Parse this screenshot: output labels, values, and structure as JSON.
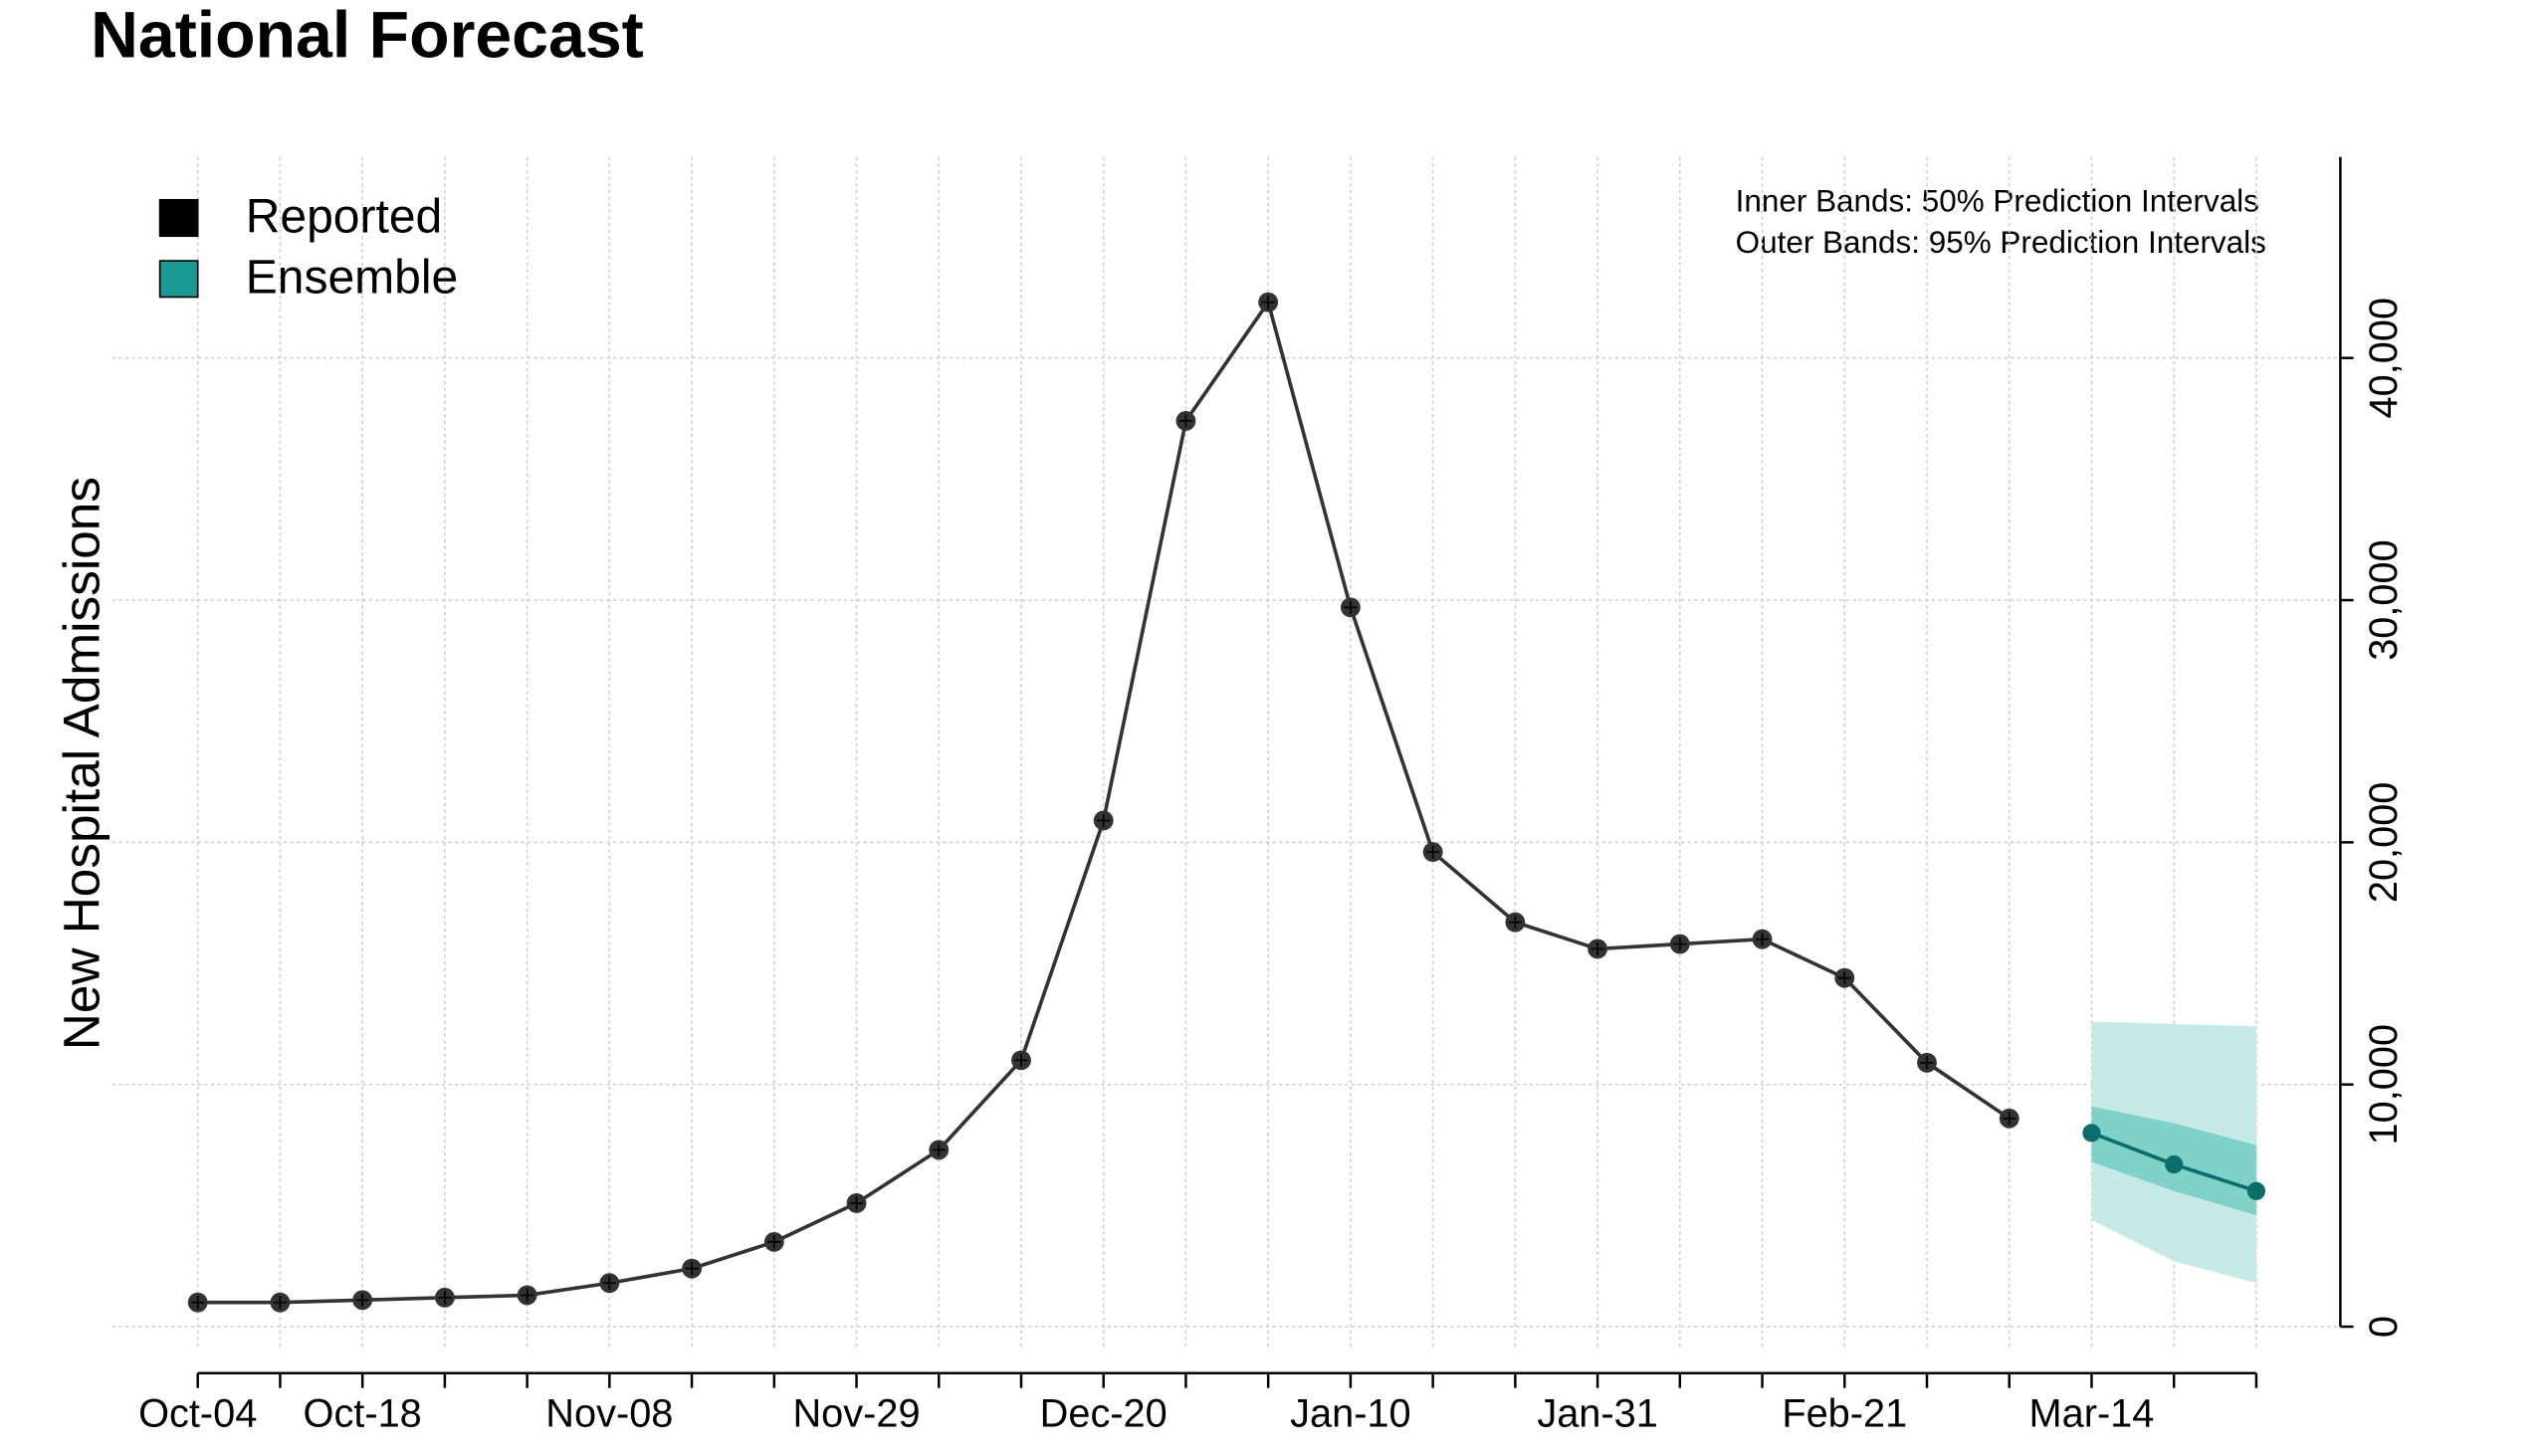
{
  "chart_data": {
    "type": "line",
    "title": "National Forecast",
    "y_label": "New Hospital Admissions",
    "annotations": [
      "Inner Bands: 50% Prediction Intervals",
      "Outer Bands: 95% Prediction Intervals"
    ],
    "categories": [
      "Oct-04",
      null,
      "Oct-18",
      null,
      null,
      "Nov-08",
      null,
      null,
      "Nov-29",
      null,
      null,
      "Dec-20",
      null,
      null,
      "Jan-10",
      null,
      null,
      "Jan-31",
      null,
      null,
      "Feb-21",
      null,
      null,
      "Mar-14",
      null,
      null
    ],
    "series": [
      {
        "name": "Reported",
        "color": "#333333",
        "legend_color": "#000000",
        "values": [
          1000,
          1000,
          1100,
          1200,
          1300,
          1800,
          2400,
          3500,
          5100,
          7300,
          11000,
          20900,
          37400,
          42300,
          29700,
          19600,
          16700,
          15600,
          15800,
          16000,
          14400,
          10900,
          8600,
          null,
          null,
          null
        ]
      },
      {
        "name": "Ensemble",
        "color": "#0b6e6c",
        "legend_color": "#1a9a94",
        "values": [
          null,
          null,
          null,
          null,
          null,
          null,
          null,
          null,
          null,
          null,
          null,
          null,
          null,
          null,
          null,
          null,
          null,
          null,
          null,
          null,
          null,
          null,
          null,
          8000,
          6700,
          5600
        ],
        "lower_95": [
          null,
          null,
          null,
          null,
          null,
          null,
          null,
          null,
          null,
          null,
          null,
          null,
          null,
          null,
          null,
          null,
          null,
          null,
          null,
          null,
          null,
          null,
          null,
          4400,
          2700,
          1800
        ],
        "upper_95": [
          null,
          null,
          null,
          null,
          null,
          null,
          null,
          null,
          null,
          null,
          null,
          null,
          null,
          null,
          null,
          null,
          null,
          null,
          null,
          null,
          null,
          null,
          null,
          12600,
          12500,
          12400
        ],
        "lower_50": [
          null,
          null,
          null,
          null,
          null,
          null,
          null,
          null,
          null,
          null,
          null,
          null,
          null,
          null,
          null,
          null,
          null,
          null,
          null,
          null,
          null,
          null,
          null,
          6800,
          5600,
          4600
        ],
        "upper_50": [
          null,
          null,
          null,
          null,
          null,
          null,
          null,
          null,
          null,
          null,
          null,
          null,
          null,
          null,
          null,
          null,
          null,
          null,
          null,
          null,
          null,
          null,
          null,
          9100,
          8400,
          7500
        ],
        "band_95_color": "#c6ebe7",
        "band_50_color": "#80d2c8"
      }
    ],
    "ylim": [
      -900,
      48300
    ],
    "yticks": [
      0,
      {
        "value": 10000,
        "label": "10,000"
      },
      {
        "value": 20000,
        "label": "20,000"
      },
      {
        "value": 30000,
        "label": "30,000"
      },
      {
        "value": 40000,
        "label": "40,000"
      }
    ],
    "grid": true,
    "legend": "top-left"
  }
}
